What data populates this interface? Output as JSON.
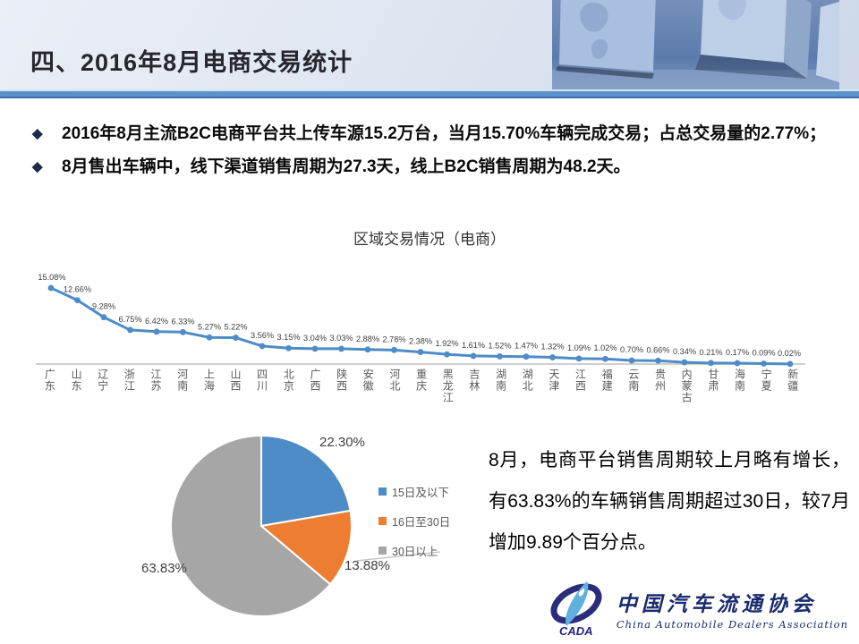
{
  "header": {
    "title": "四、2016年8月电商交易统计"
  },
  "bullets": [
    "2016年8月主流B2C电商平台共上传车源15.2万台，当月15.70%车辆完成交易；占总交易量的2.77%；",
    "8月售出车辆中，线下渠道销售周期为27.3天，线上B2C销售周期为48.2天。"
  ],
  "chart_data": [
    {
      "type": "line",
      "title": "区域交易情况（电商）",
      "categories": [
        "广东",
        "山东",
        "辽宁",
        "浙江",
        "江苏",
        "河南",
        "上海",
        "山西",
        "四川",
        "北京",
        "广西",
        "陕西",
        "安徽",
        "河北",
        "重庆",
        "黑龙江",
        "吉林",
        "湖南",
        "湖北",
        "天津",
        "江西",
        "福建",
        "云南",
        "贵州",
        "内蒙古",
        "甘肃",
        "海南",
        "宁夏",
        "新疆"
      ],
      "values": [
        15.08,
        12.66,
        9.28,
        6.75,
        6.42,
        6.33,
        5.27,
        5.22,
        3.56,
        3.15,
        3.04,
        3.03,
        2.88,
        2.78,
        2.38,
        1.92,
        1.61,
        1.52,
        1.47,
        1.32,
        1.09,
        1.02,
        0.7,
        0.66,
        0.34,
        0.21,
        0.17,
        0.09,
        0.02
      ],
      "unit": "%",
      "ylim": [
        0,
        16
      ],
      "grid": false,
      "data_labels": true,
      "line_color": "#4E8CC8",
      "label_color": "#3F3F3F",
      "axis_color": "#BFBFBF",
      "legend_position": "none"
    },
    {
      "type": "pie",
      "slices": [
        {
          "label": "15日及以下",
          "value": 22.3,
          "display": "22.30%",
          "color": "#4E8CC8"
        },
        {
          "label": "16日至30日",
          "value": 13.88,
          "display": "13.88%",
          "color": "#ED7D31"
        },
        {
          "label": "30日以上",
          "value": 63.83,
          "display": "63.83%",
          "color": "#A6A6A6"
        }
      ],
      "start_angle_deg": 0,
      "direction": "clockwise",
      "legend_position": "right"
    }
  ],
  "side_text": "8月，电商平台销售周期较上月略有增长，有63.83%的车辆销售周期超过30日，较7月增加9.89个百分点。",
  "logo": {
    "acronym": "CADA",
    "name_cn": "中国汽车流通协会",
    "name_en": "China Automobile Dealers Association"
  },
  "colors": {
    "separator_blue": "#5B92CC",
    "title_color": "#26262E",
    "bullet_diamond": "#1E2B4A"
  }
}
